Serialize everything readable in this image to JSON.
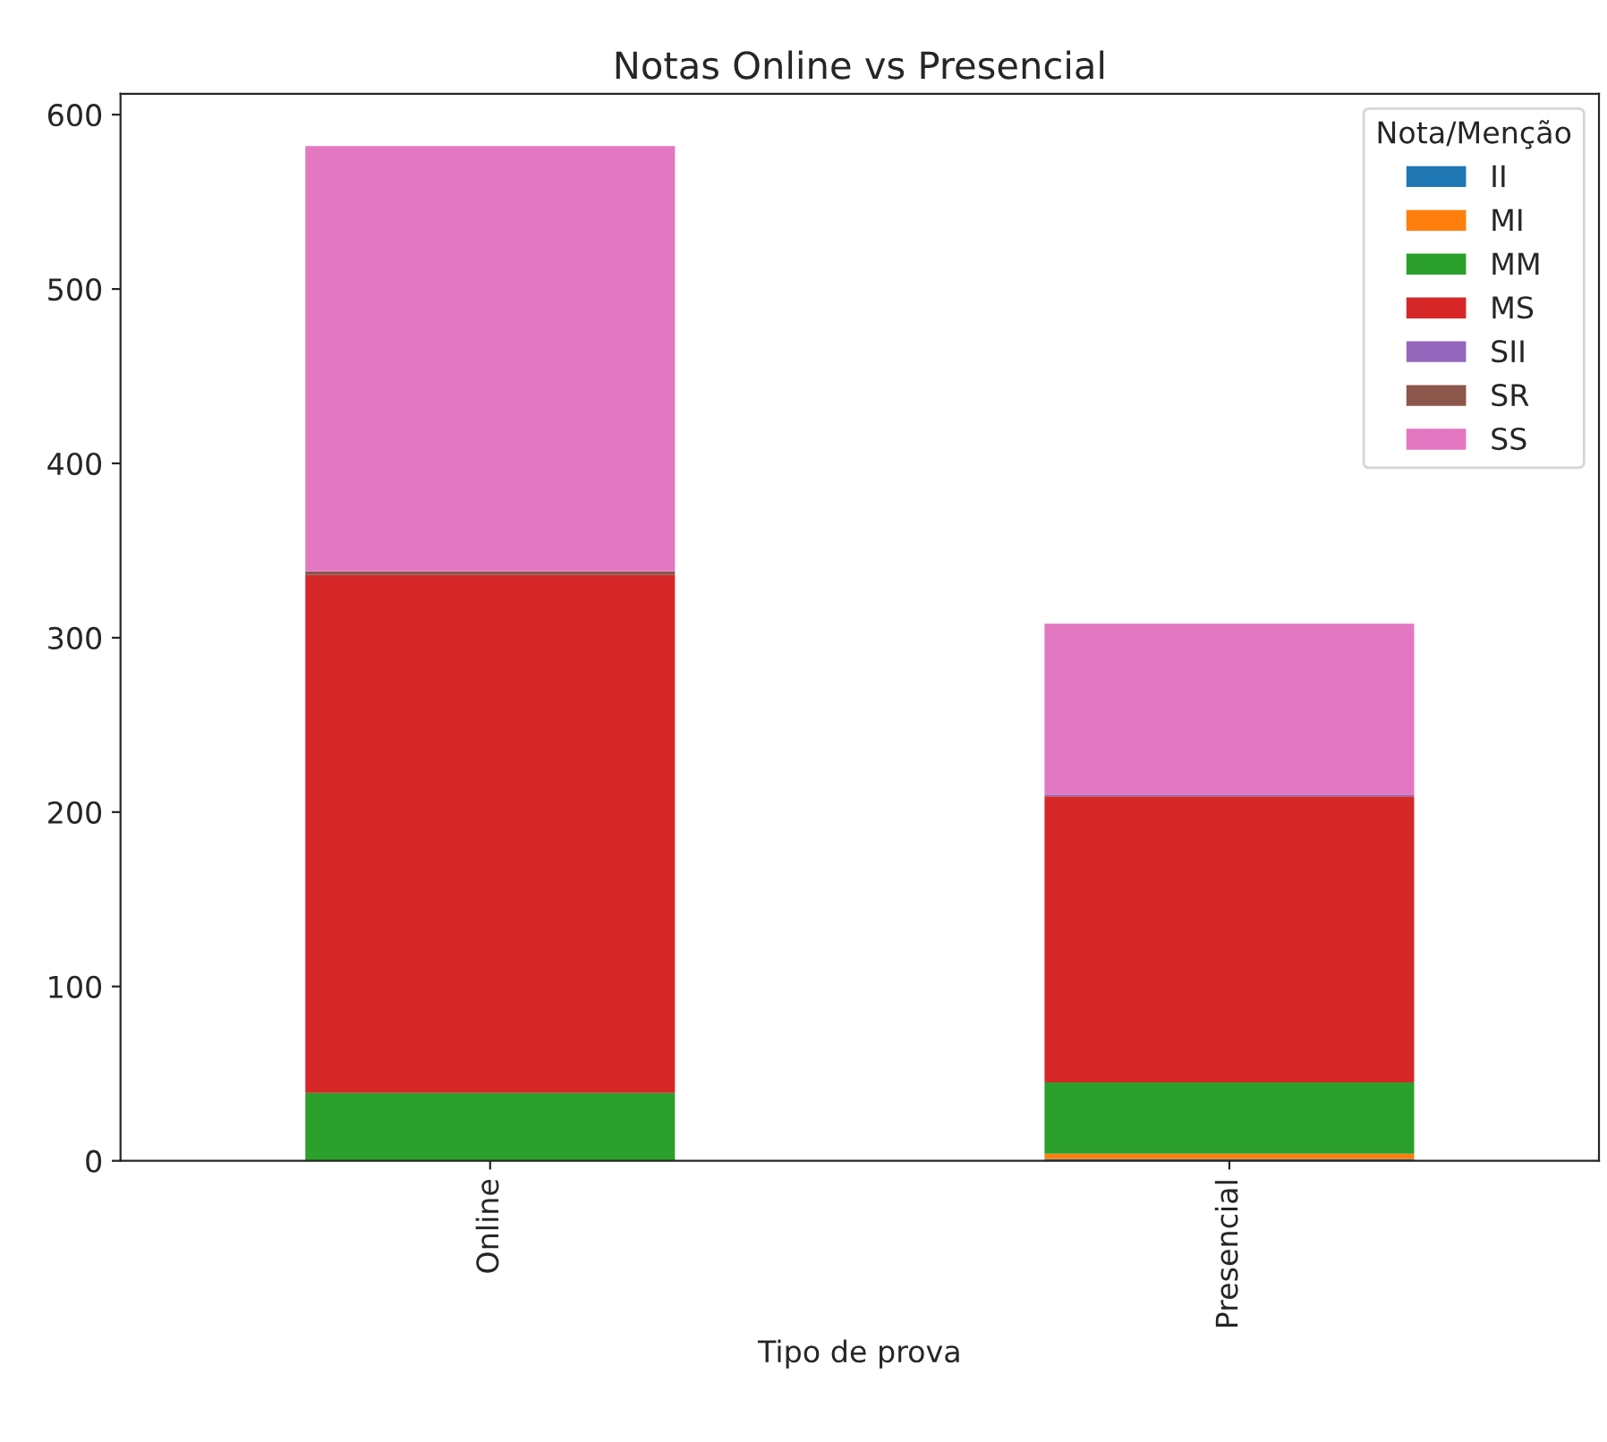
{
  "chart_data": {
    "type": "bar",
    "stacked": true,
    "title": "Notas Online vs Presencial",
    "xlabel": "Tipo de prova",
    "legend_title": "Nota/Menção",
    "legend": "top right",
    "categories": [
      "Online",
      "Presencial"
    ],
    "series": [
      {
        "name": "II",
        "color": "#1f77b4",
        "values": [
          0,
          1
        ]
      },
      {
        "name": "MI",
        "color": "#ff7f0e",
        "values": [
          0,
          3
        ]
      },
      {
        "name": "MM",
        "color": "#2ca02c",
        "values": [
          39,
          41
        ]
      },
      {
        "name": "MS",
        "color": "#d62728",
        "values": [
          297,
          164
        ]
      },
      {
        "name": "SII",
        "color": "#9467bd",
        "values": [
          0,
          1
        ]
      },
      {
        "name": "SR",
        "color": "#8c564b",
        "values": [
          2,
          0
        ]
      },
      {
        "name": "SS",
        "color": "#e377c2",
        "values": [
          244,
          98
        ]
      }
    ],
    "ylim": [
      0,
      612
    ],
    "yticks": [
      0,
      100,
      200,
      300,
      400,
      500,
      600
    ],
    "grid": false
  }
}
